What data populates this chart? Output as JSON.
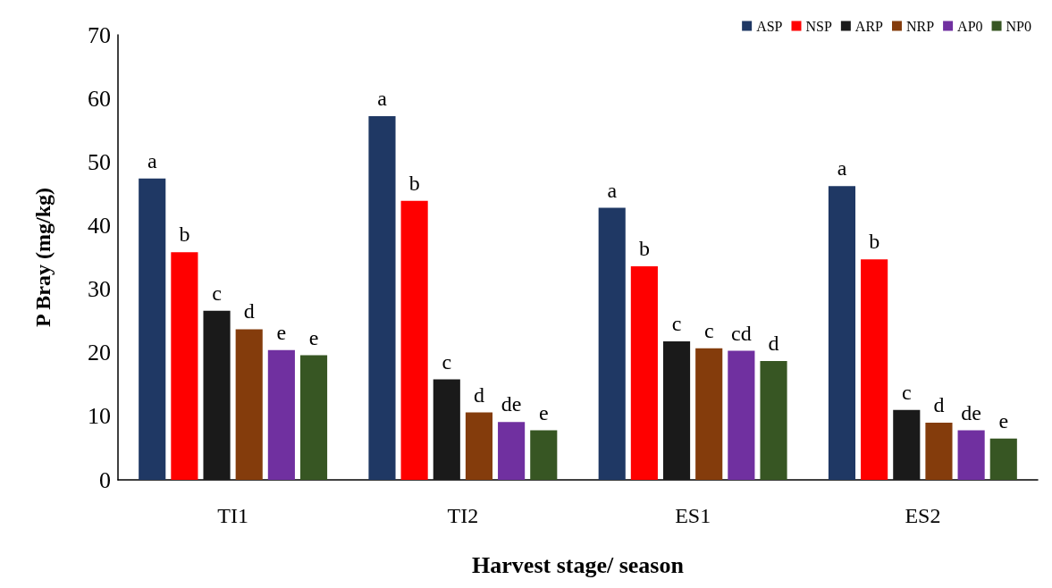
{
  "chart_data": {
    "type": "bar",
    "xlabel": "Harvest stage/ season",
    "ylabel": "P Bray (mg/kg)",
    "categories": [
      "TI1",
      "TI2",
      "ES1",
      "ES2"
    ],
    "series": [
      {
        "name": "ASP",
        "color": "#1f3864",
        "values": [
          47.4,
          57.2,
          42.8,
          46.2
        ],
        "value_labels": [
          "a",
          "a",
          "a",
          "a"
        ]
      },
      {
        "name": "NSP",
        "color": "#ff0000",
        "values": [
          35.8,
          43.9,
          33.6,
          34.7
        ],
        "value_labels": [
          "b",
          "b",
          "b",
          "b"
        ]
      },
      {
        "name": "ARP",
        "color": "#1a1a1a",
        "values": [
          26.6,
          15.8,
          21.8,
          11.0
        ],
        "value_labels": [
          "c",
          "c",
          "c",
          "c"
        ]
      },
      {
        "name": "NRP",
        "color": "#843c0c",
        "values": [
          23.7,
          10.6,
          20.7,
          9.0
        ],
        "value_labels": [
          "d",
          "d",
          "c",
          "d"
        ]
      },
      {
        "name": "AP0",
        "color": "#7030a0",
        "values": [
          20.4,
          9.1,
          20.3,
          7.8
        ],
        "value_labels": [
          "e",
          "de",
          "cd",
          "de"
        ]
      },
      {
        "name": "NP0",
        "color": "#375623",
        "values": [
          19.6,
          7.8,
          18.7,
          6.5
        ],
        "value_labels": [
          "e",
          "e",
          "d",
          "e"
        ]
      }
    ],
    "ylim": [
      0,
      70
    ],
    "yticks": [
      0,
      10,
      20,
      30,
      40,
      50,
      60,
      70
    ],
    "grid": false,
    "legend": "top right"
  }
}
